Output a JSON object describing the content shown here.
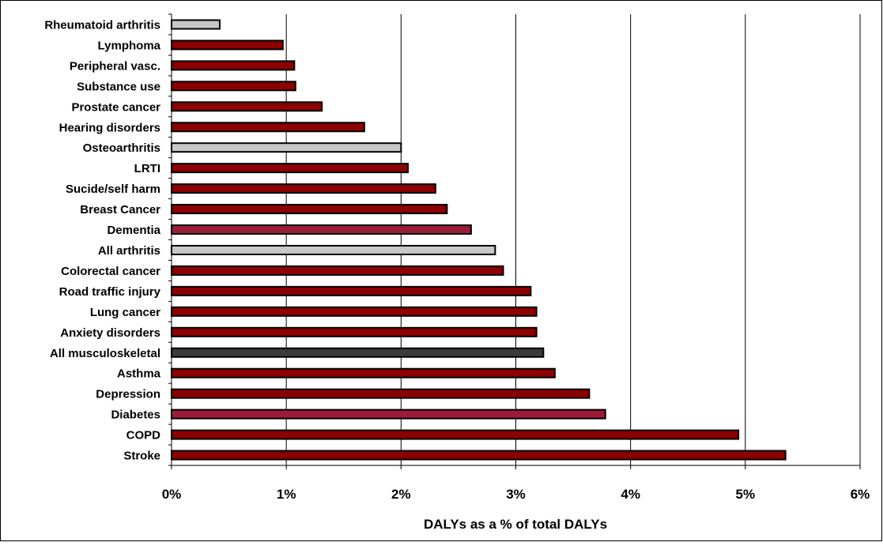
{
  "chart_data": {
    "type": "bar",
    "orientation": "horizontal",
    "title": "",
    "xlabel": "DALYs as a % of total DALYs",
    "ylabel": "",
    "xlim": [
      0,
      6
    ],
    "x_ticks": [
      0,
      1,
      2,
      3,
      4,
      5,
      6
    ],
    "x_tick_labels": [
      "0%",
      "1%",
      "2%",
      "3%",
      "4%",
      "5%",
      "6%"
    ],
    "grid": "vertical gridlines",
    "legend": "none",
    "categories": [
      "Rheumatoid arthritis",
      "Lymphoma",
      "Peripheral vasc.",
      "Substance use",
      "Prostate cancer",
      "Hearing disorders",
      "Osteoarthritis",
      "LRTI",
      "Sucide/self harm",
      "Breast Cancer",
      "Dementia",
      "All arthritis",
      "Colorectal cancer",
      "Road traffic injury",
      "Lung cancer",
      "Anxiety disorders",
      "All musculoskeletal",
      "Asthma",
      "Depression",
      "Diabetes",
      "COPD",
      "Stroke"
    ],
    "values": [
      0.42,
      0.97,
      1.07,
      1.08,
      1.31,
      1.68,
      2.0,
      2.06,
      2.3,
      2.4,
      2.61,
      2.82,
      2.89,
      3.13,
      3.18,
      3.18,
      3.24,
      3.34,
      3.64,
      3.78,
      4.94,
      5.35
    ],
    "bar_colors": [
      "#c8c8c8",
      "#8b0000",
      "#8b0000",
      "#8b0000",
      "#8b0000",
      "#8b0000",
      "#c8c8c8",
      "#8b0000",
      "#8b0000",
      "#8b0000",
      "#9b1b3a",
      "#c8c8c8",
      "#8b0000",
      "#8b0000",
      "#8b0000",
      "#8b0000",
      "#3a3a3a",
      "#8b0000",
      "#8b0000",
      "#9b1b3a",
      "#8b0000",
      "#8b0000"
    ]
  }
}
